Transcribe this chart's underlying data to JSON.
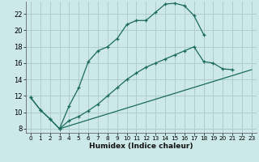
{
  "xlabel": "Humidex (Indice chaleur)",
  "background_color": "#cce8e8",
  "grid_color": "#b0cccc",
  "line_color": "#1a6b5a",
  "xlim": [
    -0.5,
    23.5
  ],
  "ylim": [
    7.5,
    23.5
  ],
  "xticks": [
    0,
    1,
    2,
    3,
    4,
    5,
    6,
    7,
    8,
    9,
    10,
    11,
    12,
    13,
    14,
    15,
    16,
    17,
    18,
    19,
    20,
    21,
    22,
    23
  ],
  "yticks": [
    8,
    10,
    12,
    14,
    16,
    18,
    20,
    22
  ],
  "line1_x": [
    0,
    1,
    2,
    3,
    4,
    5,
    6,
    7,
    8,
    9,
    10,
    11,
    12,
    13,
    14,
    15,
    16,
    17,
    18
  ],
  "line1_y": [
    11.8,
    10.3,
    9.2,
    8.0,
    10.8,
    13.0,
    16.2,
    17.5,
    18.0,
    19.0,
    20.7,
    21.2,
    21.2,
    22.2,
    23.2,
    23.3,
    23.0,
    21.8,
    19.5
  ],
  "line2_x": [
    0,
    1,
    2,
    3,
    4,
    5,
    6,
    7,
    8,
    9,
    10,
    11,
    12,
    13,
    14,
    15,
    16,
    17,
    18,
    19,
    20,
    21
  ],
  "line2_y": [
    11.8,
    10.3,
    9.2,
    8.0,
    9.0,
    9.5,
    10.2,
    11.0,
    12.0,
    13.0,
    14.0,
    14.8,
    15.5,
    16.0,
    16.5,
    17.0,
    17.5,
    18.0,
    16.2,
    16.0,
    15.3,
    15.2
  ],
  "line3_x": [
    3,
    23
  ],
  "line3_y": [
    8.0,
    15.2
  ]
}
